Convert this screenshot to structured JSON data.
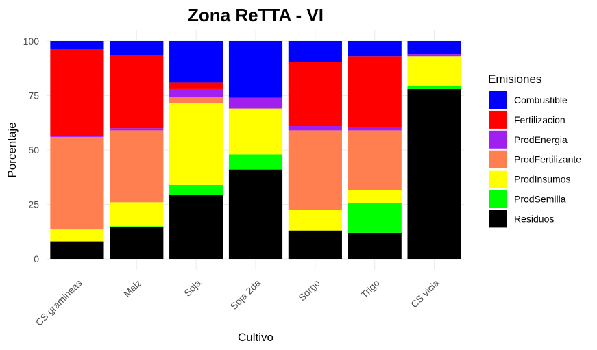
{
  "chart_data": {
    "type": "bar",
    "stacked": true,
    "title": "Zona ReTTA - VI",
    "xlabel": "Cultivo",
    "ylabel": "Porcentaje",
    "ylim": [
      0,
      100
    ],
    "yticks": [
      0,
      25,
      50,
      75,
      100
    ],
    "categories": [
      "CS gramineas",
      "Maiz",
      "Soja",
      "Soja 2da",
      "Sorgo",
      "Trigo",
      "CS vicia"
    ],
    "legend": {
      "title": "Emisiones",
      "position": "right",
      "order": [
        "Combustible",
        "Fertilizacion",
        "ProdEnergia",
        "ProdFertilizante",
        "ProdInsumos",
        "ProdSemilla",
        "Residuos"
      ]
    },
    "series": [
      {
        "name": "Residuos",
        "color": "#000000",
        "values": [
          8,
          14.5,
          29.5,
          41,
          13,
          12,
          78
        ]
      },
      {
        "name": "ProdSemilla",
        "color": "#00ff00",
        "values": [
          0,
          0.5,
          4.5,
          7,
          0,
          13.5,
          1.5
        ]
      },
      {
        "name": "ProdInsumos",
        "color": "#ffff00",
        "values": [
          5.5,
          11,
          37.5,
          21,
          9.5,
          6,
          13.5
        ]
      },
      {
        "name": "ProdFertilizante",
        "color": "#ff7f50",
        "values": [
          42.5,
          33,
          3,
          0,
          36.5,
          27.5,
          0
        ]
      },
      {
        "name": "ProdEnergia",
        "color": "#a020f0",
        "values": [
          0.5,
          1,
          3.5,
          5,
          2,
          1.5,
          1
        ]
      },
      {
        "name": "Fertilizacion",
        "color": "#ff0000",
        "values": [
          40,
          33.5,
          3,
          0,
          29.5,
          32.5,
          0
        ]
      },
      {
        "name": "Combustible",
        "color": "#0000ff",
        "values": [
          3.5,
          6.5,
          19,
          26,
          9.5,
          7,
          6
        ]
      }
    ]
  }
}
